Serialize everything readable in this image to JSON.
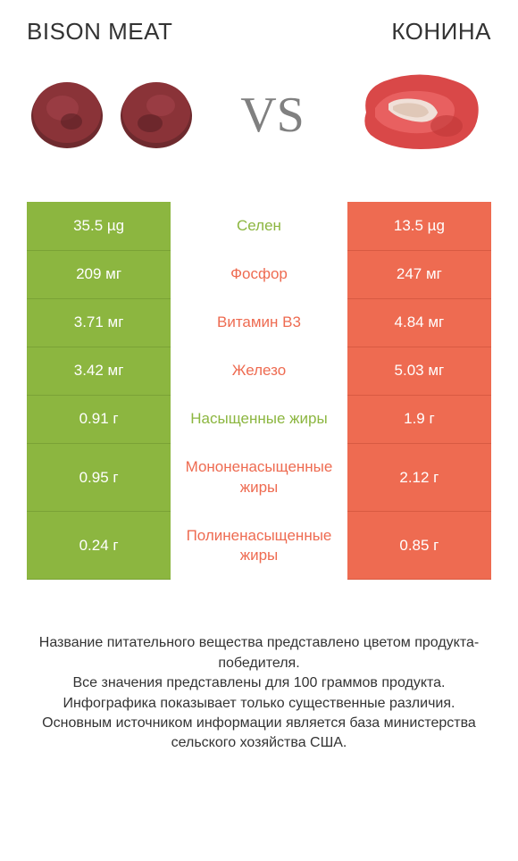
{
  "header": {
    "left_title": "BISON MEAT",
    "right_title": "КОНИНА",
    "vs": "VS"
  },
  "colors": {
    "left_bg": "#8cb640",
    "left_border": "#7aa236",
    "right_bg": "#ee6b51",
    "right_border": "#d85a42",
    "left_text": "#8cb640",
    "right_text": "#ee6b51",
    "vs_color": "#808080",
    "body_text": "#333333"
  },
  "rows": [
    {
      "left": "35.5 µg",
      "label": "Селен",
      "right": "13.5 µg",
      "winner": "left"
    },
    {
      "left": "209 мг",
      "label": "Фосфор",
      "right": "247 мг",
      "winner": "right"
    },
    {
      "left": "3.71 мг",
      "label": "Витамин B3",
      "right": "4.84 мг",
      "winner": "right"
    },
    {
      "left": "3.42 мг",
      "label": "Железо",
      "right": "5.03 мг",
      "winner": "right"
    },
    {
      "left": "0.91 г",
      "label": "Насыщенные жиры",
      "right": "1.9 г",
      "winner": "left"
    },
    {
      "left": "0.95 г",
      "label": "Мононенасыщенные жиры",
      "right": "2.12 г",
      "winner": "right"
    },
    {
      "left": "0.24 г",
      "label": "Полиненасыщенные жиры",
      "right": "0.85 г",
      "winner": "right"
    }
  ],
  "footer": {
    "line1": "Название питательного вещества представлено цветом продукта-победителя.",
    "line2": "Все значения представлены для 100 граммов продукта.",
    "line3": "Инфографика показывает только существенные различия.",
    "line4": "Основным источником информации является база министерства сельского хозяйства США."
  }
}
